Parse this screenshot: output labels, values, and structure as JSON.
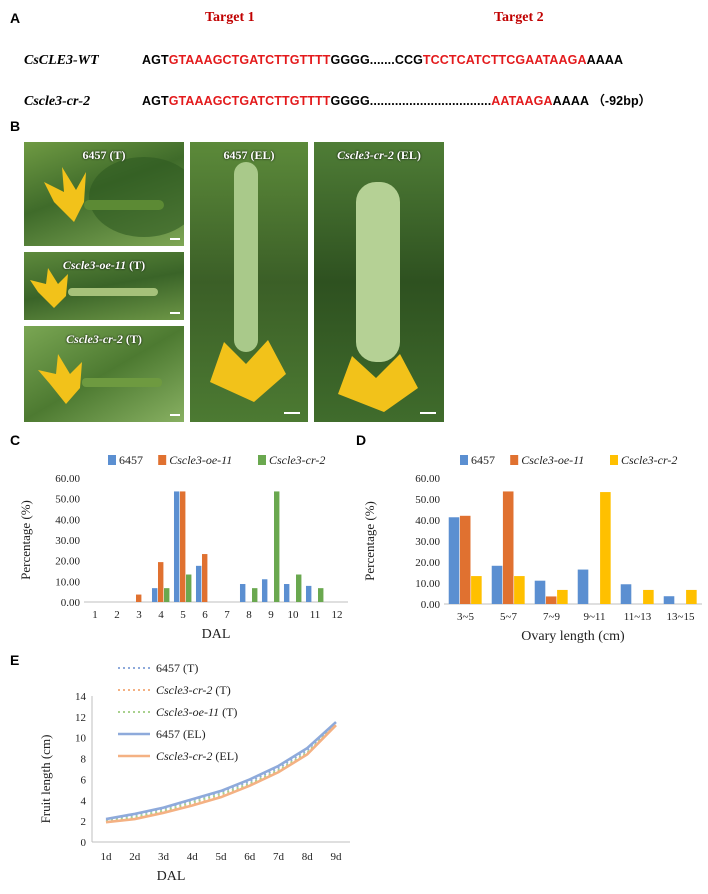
{
  "panels": {
    "A": "A",
    "B": "B",
    "C": "C",
    "D": "D",
    "E": "E"
  },
  "panel_a": {
    "target1_label": "Target 1",
    "target2_label": "Target 2",
    "rows": [
      {
        "name": "CsCLE3-WT",
        "segments": [
          {
            "t": "AGT",
            "c": "plain"
          },
          {
            "t": "GTAAAGCTGATCTTGTTTT",
            "c": "red"
          },
          {
            "t": "GGGG.......CCG",
            "c": "plain"
          },
          {
            "t": "TCCTCATCTTCGAATAAGA",
            "c": "red"
          },
          {
            "t": "AAAA",
            "c": "plain"
          }
        ]
      },
      {
        "name": "Cscle3-cr-2",
        "segments": [
          {
            "t": "AGT",
            "c": "plain"
          },
          {
            "t": "GTAAAGCTGATCTTGTTTT",
            "c": "red"
          },
          {
            "t": "GGGG..................................",
            "c": "plain"
          },
          {
            "t": "AATAAGA",
            "c": "red"
          },
          {
            "t": "AAAA （-92bp）",
            "c": "plain"
          }
        ]
      }
    ]
  },
  "panel_b": {
    "photos": [
      {
        "label_main": "6457",
        "label_suffix": " (T)",
        "italic": false
      },
      {
        "label_main": "Cscle3-oe-11",
        "label_suffix": " (T)",
        "italic": true
      },
      {
        "label_main": "Cscle3-cr-2",
        "label_suffix": " (T)",
        "italic": true
      },
      {
        "label_main": "6457",
        "label_suffix": " (EL)",
        "italic": false
      },
      {
        "label_main": "Cscle3-cr-2",
        "label_suffix": " (EL)",
        "italic": true
      }
    ]
  },
  "colors": {
    "blue": "#5b8fd1",
    "orange": "#e07130",
    "green": "#6aa84f",
    "yellow": "#ffc000",
    "line_blue": "#8eaadb",
    "line_orange": "#f4b183",
    "line_green": "#a9d18e"
  },
  "chart_data": [
    {
      "id": "C",
      "type": "bar",
      "xlabel": "DAL",
      "ylabel": "Percentage (%)",
      "ylim": [
        0,
        60
      ],
      "yticks": [
        "0.00",
        "10.00",
        "20.00",
        "30.00",
        "40.00",
        "50.00",
        "60.00"
      ],
      "categories": [
        "1",
        "2",
        "3",
        "4",
        "5",
        "6",
        "7",
        "8",
        "9",
        "10",
        "11",
        "12"
      ],
      "series": [
        {
          "name": "6457",
          "values": [
            0,
            0,
            0,
            6.7,
            53.5,
            17.5,
            0,
            8.7,
            11.0,
            8.7,
            7.8,
            0
          ]
        },
        {
          "name": "Cscle3-oe-11",
          "values": [
            0,
            0,
            3.6,
            19.3,
            53.5,
            23.2,
            0,
            0,
            0,
            0,
            0,
            0
          ]
        },
        {
          "name": "Cscle3-cr-2",
          "values": [
            0,
            0,
            0,
            6.7,
            13.3,
            0,
            0,
            6.7,
            53.5,
            13.3,
            6.7,
            0
          ]
        }
      ],
      "legend": "top"
    },
    {
      "id": "D",
      "type": "bar",
      "xlabel": "Ovary length (cm)",
      "ylabel": "Percentage (%)",
      "ylim": [
        0,
        60
      ],
      "yticks": [
        "0.00",
        "10.00",
        "20.00",
        "30.00",
        "40.00",
        "50.00",
        "60.00"
      ],
      "categories": [
        "3~5",
        "5~7",
        "7~9",
        "9~11",
        "11~13",
        "13~15"
      ],
      "series": [
        {
          "name": "6457",
          "values": [
            41.3,
            18.2,
            11.1,
            16.4,
            9.4,
            3.7
          ]
        },
        {
          "name": "Cscle3-oe-11",
          "values": [
            42.0,
            53.6,
            3.6,
            0,
            0,
            0
          ]
        },
        {
          "name": "Cscle3-cr-2",
          "values": [
            13.3,
            13.3,
            6.7,
            53.3,
            6.7,
            6.7
          ]
        }
      ],
      "legend": "top"
    },
    {
      "id": "E",
      "type": "line",
      "xlabel": "DAL",
      "ylabel": "Fruit length (cm)",
      "ylim": [
        0,
        14
      ],
      "yticks": [
        "0",
        "2",
        "4",
        "6",
        "8",
        "10",
        "12",
        "14"
      ],
      "categories": [
        "1d",
        "2d",
        "3d",
        "4d",
        "5d",
        "6d",
        "7d",
        "8d",
        "9d"
      ],
      "series": [
        {
          "name_main": "6457",
          "name_suffix": " (T)",
          "style": "dotted",
          "values": [
            2.1,
            2.6,
            3.2,
            4.0,
            4.8,
            5.8,
            7.1,
            8.8,
            11.4
          ]
        },
        {
          "name_main": "Cscle3-cr-2",
          "name_suffix": " (T)",
          "style": "dotted",
          "values": [
            1.9,
            2.3,
            2.9,
            3.6,
            4.4,
            5.5,
            6.8,
            8.5,
            11.2
          ]
        },
        {
          "name_main": "Cscle3-oe-11",
          "name_suffix": " (T)",
          "style": "dotted",
          "values": [
            2.0,
            2.4,
            3.0,
            3.8,
            4.6,
            5.6,
            6.9,
            8.6,
            11.3
          ]
        },
        {
          "name_main": "6457",
          "name_suffix": " (EL)",
          "style": "solid",
          "values": [
            2.2,
            2.7,
            3.3,
            4.1,
            4.9,
            6.0,
            7.3,
            9.0,
            11.5
          ]
        },
        {
          "name_main": "Cscle3-cr-2",
          "name_suffix": " (EL)",
          "style": "solid",
          "values": [
            1.9,
            2.2,
            2.8,
            3.5,
            4.3,
            5.4,
            6.7,
            8.4,
            11.2
          ]
        }
      ],
      "legend": "top-left"
    }
  ]
}
